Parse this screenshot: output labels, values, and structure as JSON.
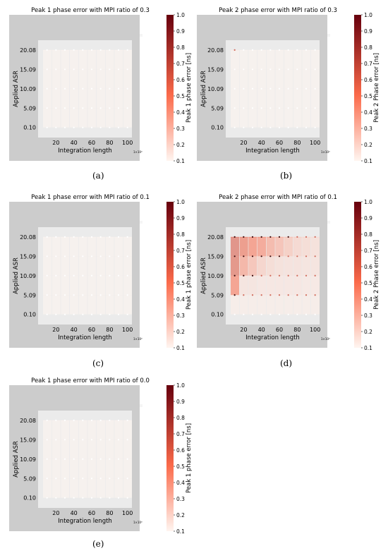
{
  "colors": {
    "figure_bg": "#cccccc",
    "plot_bg": "#ebebeb",
    "cmap_low": "#fff5f0",
    "cmap_mid": "#fb6a4a",
    "cmap_high": "#67000d",
    "marker": "#ffffff",
    "marker_dark": "#3a0a0a"
  },
  "panels": [
    {
      "id": "a",
      "letter": "(a)",
      "title": "Peak 1 phase error with MPI ratio of 0.3",
      "colorbar_label": "Peak 1 phase error [ns]"
    },
    {
      "id": "b",
      "letter": "(b)",
      "title": "Peak 2 phase error with MPI ratio of 0.3",
      "colorbar_label": "Peak 2 Phase error [ns]"
    },
    {
      "id": "c",
      "letter": "(c)",
      "title": "Peak 1 phase error with MPI ratio of 0.1",
      "colorbar_label": "Peak 1 phase error [ns]"
    },
    {
      "id": "d",
      "letter": "(d)",
      "title": "Peak 2 phase error with MPI ratio of 0.1",
      "colorbar_label": "Peak 2 Phase error [ns]"
    },
    {
      "id": "e",
      "letter": "(e)",
      "title": "Peak 1 phase error with MPI ratio of 0.0",
      "colorbar_label": "Peak 1 phase error [ns]"
    }
  ],
  "chart_data": [
    {
      "type": "heatmap",
      "panel": "a",
      "title": "Peak 1 phase error with MPI ratio of 0.3",
      "xlabel": "Integration length",
      "x_multiplier": "1×10³",
      "ylabel": "Applied ASR",
      "x": [
        10,
        20,
        30,
        40,
        50,
        60,
        70,
        80,
        90,
        100
      ],
      "y": [
        0.1,
        5.09,
        10.09,
        15.09,
        20.08
      ],
      "xticks": [
        "20",
        "40",
        "60",
        "80",
        "100"
      ],
      "yticks": [
        "0.10",
        "5.09",
        "10.09",
        "15.09",
        "20.08"
      ],
      "colorbar": {
        "label": "Peak 1 phase error [ns]",
        "range": [
          0.1,
          1.0
        ],
        "ticks": [
          "0.1",
          "0.2",
          "0.3",
          "0.4",
          "0.5",
          "0.6",
          "0.7",
          "0.8",
          "0.9",
          "1.0"
        ]
      },
      "z": [
        [
          0.1,
          0.1,
          0.1,
          0.1,
          0.1,
          0.1,
          0.1,
          0.1,
          0.1,
          0.1
        ],
        [
          0.1,
          0.1,
          0.1,
          0.1,
          0.1,
          0.1,
          0.1,
          0.1,
          0.1,
          0.1
        ],
        [
          0.1,
          0.1,
          0.1,
          0.1,
          0.1,
          0.1,
          0.1,
          0.1,
          0.1,
          0.1
        ],
        [
          0.1,
          0.1,
          0.1,
          0.1,
          0.1,
          0.1,
          0.1,
          0.1,
          0.1,
          0.1
        ],
        [
          0.1,
          0.1,
          0.1,
          0.1,
          0.1,
          0.1,
          0.1,
          0.1,
          0.1,
          0.1
        ]
      ]
    },
    {
      "type": "heatmap",
      "panel": "b",
      "title": "Peak 2 phase error with MPI ratio of 0.3",
      "xlabel": "Integration length",
      "x_multiplier": "1×10³",
      "ylabel": "Applied ASR",
      "x": [
        10,
        20,
        30,
        40,
        50,
        60,
        70,
        80,
        90,
        100
      ],
      "y": [
        0.1,
        5.09,
        10.09,
        15.09,
        20.08
      ],
      "xticks": [
        "20",
        "40",
        "60",
        "80",
        "100"
      ],
      "yticks": [
        "0.10",
        "5.09",
        "10.09",
        "15.09",
        "20.08"
      ],
      "colorbar": {
        "label": "Peak 2 Phase error [ns]",
        "range": [
          0.1,
          1.0
        ],
        "ticks": [
          "0.1",
          "0.2",
          "0.3",
          "0.4",
          "0.5",
          "0.6",
          "0.7",
          "0.8",
          "0.9",
          "1.0"
        ]
      },
      "z": [
        [
          0.1,
          0.1,
          0.1,
          0.1,
          0.1,
          0.1,
          0.1,
          0.1,
          0.1,
          0.1
        ],
        [
          0.1,
          0.1,
          0.1,
          0.1,
          0.1,
          0.1,
          0.1,
          0.1,
          0.1,
          0.1
        ],
        [
          0.1,
          0.1,
          0.1,
          0.1,
          0.1,
          0.1,
          0.1,
          0.1,
          0.1,
          0.1
        ],
        [
          0.1,
          0.1,
          0.1,
          0.1,
          0.1,
          0.1,
          0.1,
          0.1,
          0.1,
          0.1
        ],
        [
          0.15,
          0.1,
          0.1,
          0.1,
          0.1,
          0.1,
          0.1,
          0.1,
          0.1,
          0.1
        ]
      ]
    },
    {
      "type": "heatmap",
      "panel": "c",
      "title": "Peak 1 phase error with MPI ratio of 0.1",
      "xlabel": "Integration length",
      "x_multiplier": "1×10³",
      "ylabel": "Applied ASR",
      "x": [
        10,
        20,
        30,
        40,
        50,
        60,
        70,
        80,
        90,
        100
      ],
      "y": [
        0.1,
        5.09,
        10.09,
        15.09,
        20.08
      ],
      "xticks": [
        "20",
        "40",
        "60",
        "80",
        "100"
      ],
      "yticks": [
        "0.10",
        "5.09",
        "10.09",
        "15.09",
        "20.08"
      ],
      "colorbar": {
        "label": "Peak 1 phase error [ns]",
        "range": [
          0.1,
          1.0
        ],
        "ticks": [
          "0.1",
          "0.2",
          "0.3",
          "0.4",
          "0.5",
          "0.6",
          "0.7",
          "0.8",
          "0.9",
          "1.0"
        ]
      },
      "z": [
        [
          0.1,
          0.1,
          0.1,
          0.1,
          0.1,
          0.1,
          0.1,
          0.1,
          0.1,
          0.1
        ],
        [
          0.1,
          0.1,
          0.1,
          0.1,
          0.1,
          0.1,
          0.1,
          0.1,
          0.1,
          0.1
        ],
        [
          0.1,
          0.1,
          0.1,
          0.1,
          0.1,
          0.1,
          0.1,
          0.1,
          0.1,
          0.1
        ],
        [
          0.1,
          0.1,
          0.1,
          0.1,
          0.1,
          0.1,
          0.1,
          0.1,
          0.1,
          0.1
        ],
        [
          0.1,
          0.1,
          0.1,
          0.1,
          0.1,
          0.1,
          0.1,
          0.1,
          0.1,
          0.1
        ]
      ]
    },
    {
      "type": "heatmap",
      "panel": "d",
      "title": "Peak 2 phase error with MPI ratio of 0.1",
      "xlabel": "Integration length",
      "x_multiplier": "1×10³",
      "ylabel": "Applied ASR",
      "x": [
        10,
        20,
        30,
        40,
        50,
        60,
        70,
        80,
        90,
        100
      ],
      "y": [
        0.1,
        5.09,
        10.09,
        15.09,
        20.08
      ],
      "xticks": [
        "20",
        "40",
        "60",
        "80",
        "100"
      ],
      "yticks": [
        "0.10",
        "5.09",
        "10.09",
        "15.09",
        "20.08"
      ],
      "colorbar": {
        "label": "Peak 2 Phase error [ns]",
        "range": [
          0.1,
          1.0
        ],
        "ticks": [
          "0.1",
          "0.2",
          "0.3",
          "0.4",
          "0.5",
          "0.6",
          "0.7",
          "0.8",
          "0.9",
          "1.0"
        ]
      },
      "z": [
        [
          0.12,
          0.12,
          0.12,
          0.12,
          0.12,
          0.12,
          0.12,
          0.12,
          0.12,
          0.12
        ],
        [
          0.5,
          0.16,
          0.16,
          0.15,
          0.15,
          0.15,
          0.15,
          0.15,
          0.14,
          0.14
        ],
        [
          0.6,
          0.4,
          0.32,
          0.24,
          0.2,
          0.18,
          0.17,
          0.17,
          0.16,
          0.16
        ],
        [
          0.62,
          0.55,
          0.5,
          0.46,
          0.38,
          0.33,
          0.27,
          0.22,
          0.2,
          0.18
        ],
        [
          0.62,
          0.6,
          0.58,
          0.56,
          0.5,
          0.45,
          0.38,
          0.3,
          0.24,
          0.2
        ]
      ]
    },
    {
      "type": "heatmap",
      "panel": "e",
      "title": "Peak 1 phase error with MPI ratio of 0.0",
      "xlabel": "Integration length",
      "x_multiplier": "1×10³",
      "ylabel": "Applied ASR",
      "x": [
        10,
        20,
        30,
        40,
        50,
        60,
        70,
        80,
        90,
        100
      ],
      "y": [
        0.1,
        5.09,
        10.09,
        15.09,
        20.08
      ],
      "xticks": [
        "20",
        "40",
        "60",
        "80",
        "100"
      ],
      "yticks": [
        "0.10",
        "5.09",
        "10.09",
        "15.09",
        "20.08"
      ],
      "colorbar": {
        "label": "Peak 1 phase error [ns]",
        "range": [
          0.1,
          1.0
        ],
        "ticks": [
          "0.1",
          "0.2",
          "0.3",
          "0.4",
          "0.5",
          "0.6",
          "0.7",
          "0.8",
          "0.9",
          "1.0"
        ]
      },
      "z": [
        [
          0.1,
          0.1,
          0.1,
          0.1,
          0.1,
          0.1,
          0.1,
          0.1,
          0.1,
          0.1
        ],
        [
          0.1,
          0.1,
          0.1,
          0.1,
          0.1,
          0.1,
          0.1,
          0.1,
          0.1,
          0.1
        ],
        [
          0.1,
          0.1,
          0.1,
          0.1,
          0.1,
          0.1,
          0.1,
          0.1,
          0.1,
          0.1
        ],
        [
          0.1,
          0.1,
          0.1,
          0.1,
          0.1,
          0.1,
          0.1,
          0.1,
          0.1,
          0.1
        ],
        [
          0.1,
          0.1,
          0.1,
          0.1,
          0.1,
          0.1,
          0.1,
          0.1,
          0.1,
          0.1
        ]
      ]
    }
  ]
}
